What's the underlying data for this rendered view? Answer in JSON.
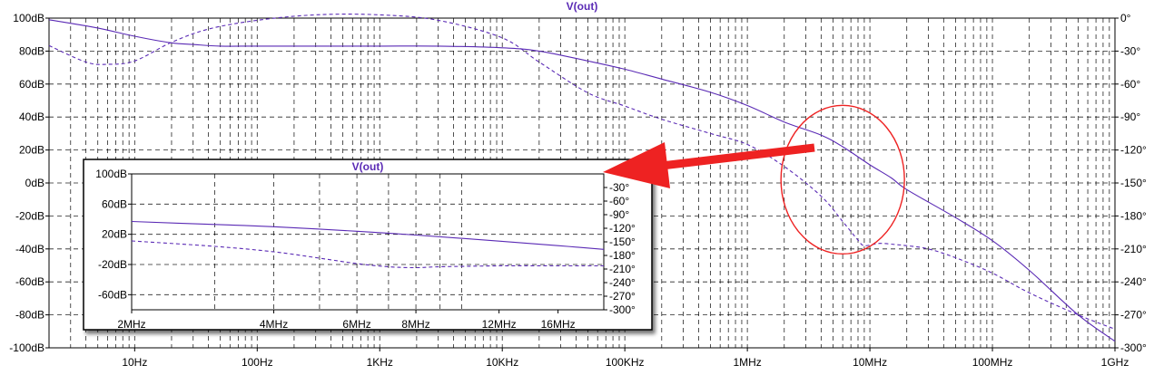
{
  "colors": {
    "trace": "#5a2ab5",
    "grid": "#000000",
    "annotation": "#ee2222",
    "background": "#ffffff"
  },
  "chart_data": [
    {
      "type": "line",
      "title": "V(out)",
      "xscale": "log",
      "xlim": [
        2,
        1000000000
      ],
      "ylim": [
        -100,
        100
      ],
      "y2lim": [
        -300,
        0
      ],
      "grid": true,
      "xticks": [
        {
          "v": 10,
          "label": "10Hz"
        },
        {
          "v": 100,
          "label": "100Hz"
        },
        {
          "v": 1000,
          "label": "1KHz"
        },
        {
          "v": 10000,
          "label": "10KHz"
        },
        {
          "v": 100000,
          "label": "100KHz"
        },
        {
          "v": 1000000,
          "label": "1MHz"
        },
        {
          "v": 10000000,
          "label": "10MHz"
        },
        {
          "v": 100000000,
          "label": "100MHz"
        },
        {
          "v": 1000000000,
          "label": "1GHz"
        }
      ],
      "yticks": [
        {
          "v": 100,
          "label": "100dB"
        },
        {
          "v": 80,
          "label": "80dB"
        },
        {
          "v": 60,
          "label": "60dB"
        },
        {
          "v": 40,
          "label": "40dB"
        },
        {
          "v": 20,
          "label": "20dB"
        },
        {
          "v": 0,
          "label": "0dB"
        },
        {
          "v": -20,
          "label": "-20dB"
        },
        {
          "v": -40,
          "label": "-40dB"
        },
        {
          "v": -60,
          "label": "-60dB"
        },
        {
          "v": -80,
          "label": "-80dB"
        },
        {
          "v": -100,
          "label": "-100dB"
        }
      ],
      "y2ticks": [
        {
          "v": 0,
          "label": "0°"
        },
        {
          "v": -30,
          "label": "-30°"
        },
        {
          "v": -60,
          "label": "-60°"
        },
        {
          "v": -90,
          "label": "-90°"
        },
        {
          "v": -120,
          "label": "-120°"
        },
        {
          "v": -150,
          "label": "-150°"
        },
        {
          "v": -180,
          "label": "-180°"
        },
        {
          "v": -210,
          "label": "-210°"
        },
        {
          "v": -240,
          "label": "-240°"
        },
        {
          "v": -270,
          "label": "-270°"
        },
        {
          "v": -300,
          "label": "-300°"
        }
      ],
      "series": [
        {
          "axis": "y",
          "style": "solid",
          "x": [
            2,
            5,
            10,
            20,
            30,
            50,
            100,
            300,
            1000,
            3000,
            10000,
            20000,
            50000,
            100000,
            200000,
            500000,
            1000000,
            2000000,
            4000000,
            6000000,
            10000000,
            15000000,
            20000000,
            50000000,
            100000000,
            200000000,
            500000000,
            1000000000
          ],
          "y": [
            99,
            94,
            89,
            85,
            84,
            83,
            83,
            83,
            83,
            83,
            82,
            80,
            74,
            69,
            63,
            55,
            47,
            37,
            29,
            22,
            11,
            3,
            -4,
            -21,
            -35,
            -53,
            -80,
            -96
          ]
        },
        {
          "axis": "y2",
          "style": "dashed",
          "x": [
            2,
            4,
            6,
            10,
            20,
            40,
            100,
            300,
            1000,
            3000,
            10000,
            20000,
            50000,
            100000,
            200000,
            500000,
            1000000,
            2000000,
            4000000,
            6000000,
            8000000,
            9000000,
            12000000,
            16000000,
            20000000,
            30000000,
            50000000,
            100000000,
            200000000,
            500000000,
            1000000000
          ],
          "y": [
            -25,
            -40,
            -42,
            -39,
            -22,
            -10,
            -2,
            3,
            3,
            -2,
            -18,
            -40,
            -68,
            -80,
            -92,
            -105,
            -115,
            -135,
            -162,
            -185,
            -202,
            -207,
            -205,
            -206,
            -207,
            -210,
            -218,
            -232,
            -250,
            -270,
            -283
          ]
        }
      ],
      "annotations": [
        {
          "type": "ellipse",
          "cx_freq": 6000000,
          "cy_db": 2
        }
      ]
    },
    {
      "type": "line",
      "title": "V(out)",
      "inset": true,
      "xscale": "log",
      "xlim": [
        2000000,
        20000000
      ],
      "ylim": [
        -80,
        100
      ],
      "y2lim": [
        -300,
        0
      ],
      "grid": true,
      "xticks": [
        {
          "v": 2000000,
          "label": "2MHz"
        },
        {
          "v": 4000000,
          "label": "4MHz"
        },
        {
          "v": 6000000,
          "label": "6MHz"
        },
        {
          "v": 8000000,
          "label": "8MHz"
        },
        {
          "v": 12000000,
          "label": "12MHz"
        },
        {
          "v": 16000000,
          "label": "16MHz"
        }
      ],
      "yticks": [
        {
          "v": 100,
          "label": "100dB"
        },
        {
          "v": 60,
          "label": "60dB"
        },
        {
          "v": 20,
          "label": "20dB"
        },
        {
          "v": -20,
          "label": "-20dB"
        },
        {
          "v": -60,
          "label": "-60dB"
        }
      ],
      "y2ticks": [
        {
          "v": -30,
          "label": "-30°"
        },
        {
          "v": -60,
          "label": "-60°"
        },
        {
          "v": -90,
          "label": "-90°"
        },
        {
          "v": -120,
          "label": "-120°"
        },
        {
          "v": -150,
          "label": "-150°"
        },
        {
          "v": -180,
          "label": "-180°"
        },
        {
          "v": -210,
          "label": "-210°"
        },
        {
          "v": -240,
          "label": "-240°"
        },
        {
          "v": -270,
          "label": "-270°"
        },
        {
          "v": -300,
          "label": "-300°"
        }
      ],
      "series": [
        {
          "axis": "y",
          "style": "solid",
          "x": [
            2000000,
            3000000,
            4000000,
            6000000,
            8000000,
            12000000,
            16000000,
            20000000
          ],
          "y": [
            37,
            33,
            30,
            24,
            19,
            11,
            5,
            0
          ]
        },
        {
          "axis": "y2",
          "style": "dashed",
          "x": [
            2000000,
            3000000,
            4000000,
            5000000,
            6000000,
            7000000,
            8000000,
            9000000,
            12000000,
            16000000,
            20000000
          ],
          "y": [
            -148,
            -160,
            -172,
            -186,
            -198,
            -205,
            -207,
            -205,
            -203,
            -203,
            -203
          ]
        }
      ]
    }
  ]
}
